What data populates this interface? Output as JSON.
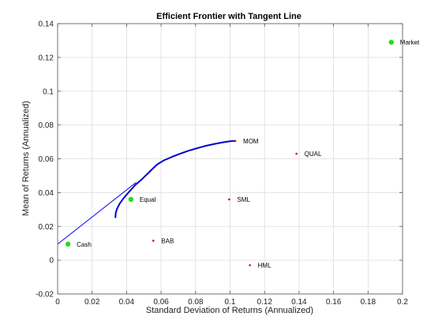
{
  "chart_data": {
    "type": "scatter",
    "title": "Efficient Frontier with Tangent Line",
    "xlabel": "Standard Deviation of Returns (Annualized)",
    "ylabel": "Mean of Returns (Annualized)",
    "xlim": [
      0,
      0.2
    ],
    "ylim": [
      -0.02,
      0.14
    ],
    "xticks": [
      0,
      0.02,
      0.04,
      0.06,
      0.08,
      0.1,
      0.12,
      0.14,
      0.16,
      0.18,
      0.2
    ],
    "xtick_labels": [
      "0",
      "0.02",
      "0.04",
      "0.06",
      "0.08",
      "0.1",
      "0.12",
      "0.14",
      "0.16",
      "0.18",
      "0.2"
    ],
    "yticks": [
      -0.02,
      0,
      0.02,
      0.04,
      0.06,
      0.08,
      0.1,
      0.12,
      0.14
    ],
    "ytick_labels": [
      "-0.02",
      "0",
      "0.02",
      "0.04",
      "0.06",
      "0.08",
      "0.1",
      "0.12",
      "0.14"
    ],
    "grid": true,
    "colors": {
      "frontier": "#0000cc",
      "tangent": "#0000ee",
      "asset": "#e60000",
      "portfolio": "#22dd22"
    },
    "frontier": {
      "x": [
        0.0335,
        0.0337,
        0.0345,
        0.036,
        0.0385,
        0.0415,
        0.045,
        0.049,
        0.053,
        0.0575,
        0.0615,
        0.066,
        0.071,
        0.076,
        0.081,
        0.086,
        0.091,
        0.0955,
        0.0995,
        0.103
      ],
      "y": [
        0.025,
        0.028,
        0.0305,
        0.0335,
        0.037,
        0.0405,
        0.0445,
        0.048,
        0.052,
        0.0565,
        0.059,
        0.061,
        0.063,
        0.0648,
        0.0663,
        0.0677,
        0.0688,
        0.0697,
        0.0703,
        0.0707
      ]
    },
    "tangent_line": {
      "x": [
        0,
        0.0455
      ],
      "y": [
        0.0095,
        0.046
      ]
    },
    "assets": [
      {
        "name": "MOM",
        "x": 0.103,
        "y": 0.0705
      },
      {
        "name": "QUAL",
        "x": 0.1385,
        "y": 0.063
      },
      {
        "name": "SML",
        "x": 0.0995,
        "y": 0.036
      },
      {
        "name": "BAB",
        "x": 0.0555,
        "y": 0.0115
      },
      {
        "name": "HML",
        "x": 0.1115,
        "y": -0.003
      }
    ],
    "portfolios": [
      {
        "name": "Market",
        "x": 0.1935,
        "y": 0.129
      },
      {
        "name": "Equal",
        "x": 0.0425,
        "y": 0.036
      },
      {
        "name": "Cash",
        "x": 0.006,
        "y": 0.0095
      }
    ]
  }
}
